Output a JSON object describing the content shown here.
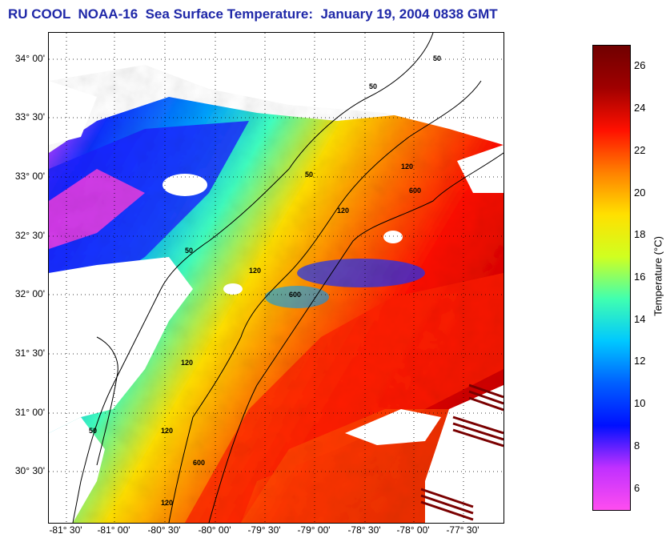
{
  "title": "RU COOL  NOAA-16  Sea Surface Temperature:  January 19, 2004 0838 GMT",
  "map": {
    "lat_labels": [
      "34° 00'",
      "33° 30'",
      "33° 00'",
      "32° 30'",
      "32° 00'",
      "31° 30'",
      "31° 00'",
      "30° 30'"
    ],
    "lon_labels": [
      "-81° 30'",
      "-81° 00'",
      "-80° 30'",
      "-80° 00'",
      "-79° 30'",
      "-79° 00'",
      "-78° 30'",
      "-78° 00'",
      "-77° 30'"
    ],
    "contour_labels": [
      "50",
      "50",
      "50",
      "50",
      "50",
      "120",
      "120",
      "120",
      "120",
      "120",
      "120",
      "600",
      "600",
      "600"
    ],
    "grid": "dotted"
  },
  "colorbar": {
    "label": "Temperature (°C)",
    "ticks": [
      "26",
      "24",
      "22",
      "20",
      "18",
      "16",
      "14",
      "12",
      "10",
      "8",
      "6"
    ],
    "range": [
      5,
      27
    ],
    "colors": [
      "#ff4df0",
      "#c030ff",
      "#0010ff",
      "#0060ff",
      "#00c8ff",
      "#40ffb0",
      "#d0ff20",
      "#ffe000",
      "#ff8000",
      "#ff1000",
      "#a00000",
      "#700000"
    ]
  }
}
